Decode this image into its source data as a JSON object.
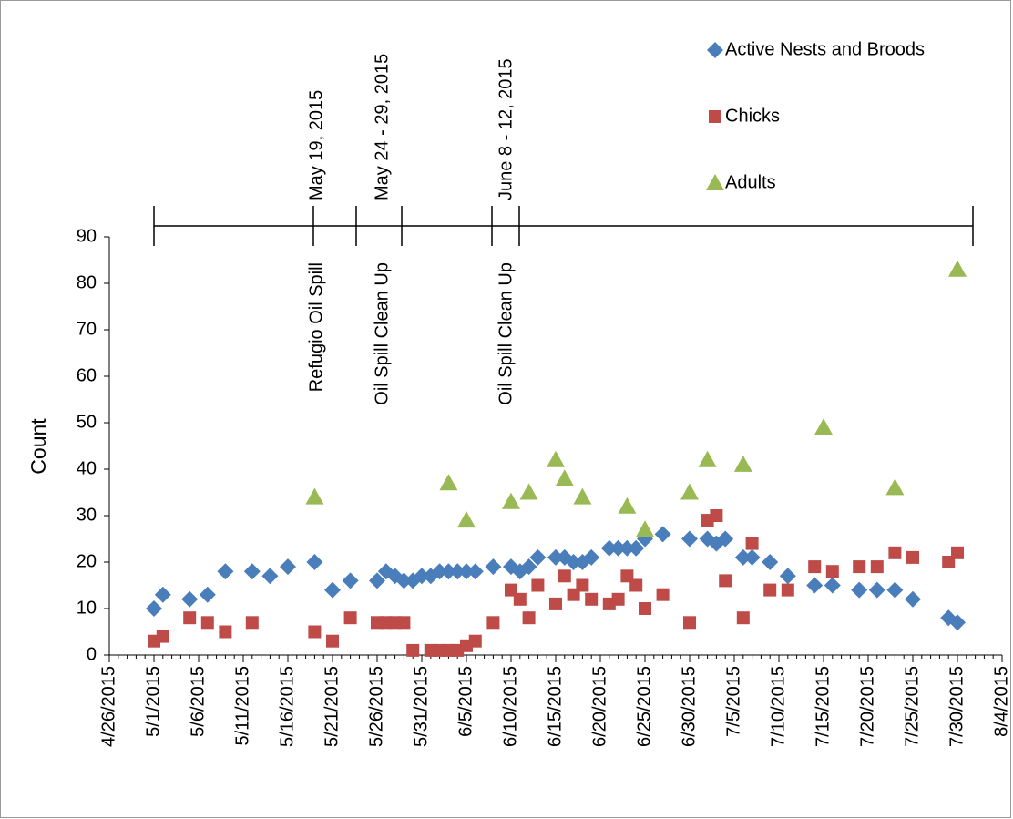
{
  "chart_data": {
    "type": "scatter",
    "y_label": "Count",
    "xlim": [
      "4/26/2015",
      "8/4/2015"
    ],
    "xticks": [
      "4/26/2015",
      "5/1/2015",
      "5/6/2015",
      "5/11/2015",
      "5/16/2015",
      "5/21/2015",
      "5/26/2015",
      "5/31/2015",
      "6/5/2015",
      "6/10/2015",
      "6/15/2015",
      "6/20/2015",
      "6/25/2015",
      "6/30/2015",
      "7/5/2015",
      "7/10/2015",
      "7/15/2015",
      "7/20/2015",
      "7/25/2015",
      "7/30/2015",
      "8/4/2015"
    ],
    "ylim": [
      0,
      90
    ],
    "yticks": [
      0,
      10,
      20,
      30,
      40,
      50,
      60,
      70,
      80,
      90
    ],
    "annotations": [
      {
        "date": "May 19, 2015",
        "event": "Refugio Oil Spill"
      },
      {
        "date": "May  24 - 29, 2015",
        "event": "Oil Spill Clean Up"
      },
      {
        "date": "June 8 - 12, 2015",
        "event": "Oil Spill Clean Up"
      }
    ],
    "series": [
      {
        "name": "Active Nests and Broods",
        "color": "#4a7ebb",
        "marker": "diamond",
        "x": [
          "5/1/2015",
          "5/2/2015",
          "5/5/2015",
          "5/7/2015",
          "5/9/2015",
          "5/12/2015",
          "5/14/2015",
          "5/16/2015",
          "5/19/2015",
          "5/21/2015",
          "5/23/2015",
          "5/26/2015",
          "5/27/2015",
          "5/28/2015",
          "5/29/2015",
          "5/30/2015",
          "5/31/2015",
          "6/1/2015",
          "6/2/2015",
          "6/3/2015",
          "6/4/2015",
          "6/5/2015",
          "6/6/2015",
          "6/8/2015",
          "6/10/2015",
          "6/11/2015",
          "6/12/2015",
          "6/13/2015",
          "6/15/2015",
          "6/16/2015",
          "6/17/2015",
          "6/18/2015",
          "6/19/2015",
          "6/21/2015",
          "6/22/2015",
          "6/23/2015",
          "6/24/2015",
          "6/25/2015",
          "6/27/2015",
          "6/30/2015",
          "7/2/2015",
          "7/3/2015",
          "7/4/2015",
          "7/6/2015",
          "7/7/2015",
          "7/9/2015",
          "7/11/2015",
          "7/14/2015",
          "7/16/2015",
          "7/19/2015",
          "7/21/2015",
          "7/23/2015",
          "7/25/2015",
          "7/29/2015",
          "7/30/2015"
        ],
        "values": [
          10,
          13,
          12,
          13,
          18,
          18,
          17,
          19,
          20,
          14,
          16,
          16,
          18,
          17,
          16,
          16,
          17,
          17,
          18,
          18,
          18,
          18,
          18,
          19,
          19,
          18,
          19,
          21,
          21,
          21,
          20,
          20,
          21,
          23,
          23,
          23,
          23,
          25,
          26,
          25,
          25,
          24,
          25,
          21,
          21,
          20,
          17,
          15,
          15,
          14,
          14,
          14,
          12,
          8,
          7
        ]
      },
      {
        "name": "Chicks",
        "color": "#be4b48",
        "marker": "square",
        "x": [
          "5/1/2015",
          "5/2/2015",
          "5/5/2015",
          "5/7/2015",
          "5/9/2015",
          "5/12/2015",
          "5/19/2015",
          "5/21/2015",
          "5/23/2015",
          "5/26/2015",
          "5/27/2015",
          "5/28/2015",
          "5/29/2015",
          "5/30/2015",
          "6/1/2015",
          "6/2/2015",
          "6/3/2015",
          "6/4/2015",
          "6/5/2015",
          "6/6/2015",
          "6/8/2015",
          "6/10/2015",
          "6/11/2015",
          "6/12/2015",
          "6/13/2015",
          "6/15/2015",
          "6/16/2015",
          "6/17/2015",
          "6/18/2015",
          "6/19/2015",
          "6/21/2015",
          "6/22/2015",
          "6/23/2015",
          "6/24/2015",
          "6/25/2015",
          "6/27/2015",
          "6/30/2015",
          "7/2/2015",
          "7/3/2015",
          "7/4/2015",
          "7/6/2015",
          "7/7/2015",
          "7/9/2015",
          "7/11/2015",
          "7/14/2015",
          "7/16/2015",
          "7/19/2015",
          "7/21/2015",
          "7/23/2015",
          "7/25/2015",
          "7/29/2015",
          "7/30/2015"
        ],
        "values": [
          3,
          4,
          8,
          7,
          5,
          7,
          5,
          3,
          8,
          7,
          7,
          7,
          7,
          1,
          1,
          1,
          1,
          1,
          2,
          3,
          7,
          14,
          12,
          8,
          15,
          11,
          17,
          13,
          15,
          12,
          11,
          12,
          17,
          15,
          10,
          13,
          7,
          29,
          30,
          16,
          8,
          24,
          14,
          14,
          19,
          18,
          19,
          19,
          22,
          21,
          20,
          22
        ]
      },
      {
        "name": "Adults",
        "color": "#98b954",
        "marker": "triangle",
        "x": [
          "5/19/2015",
          "6/3/2015",
          "6/5/2015",
          "6/10/2015",
          "6/12/2015",
          "6/15/2015",
          "6/16/2015",
          "6/18/2015",
          "6/23/2015",
          "6/25/2015",
          "6/30/2015",
          "7/2/2015",
          "7/6/2015",
          "7/15/2015",
          "7/23/2015",
          "7/30/2015"
        ],
        "values": [
          34,
          37,
          29,
          33,
          35,
          42,
          38,
          34,
          32,
          27,
          35,
          42,
          41,
          49,
          36,
          83
        ]
      }
    ]
  }
}
